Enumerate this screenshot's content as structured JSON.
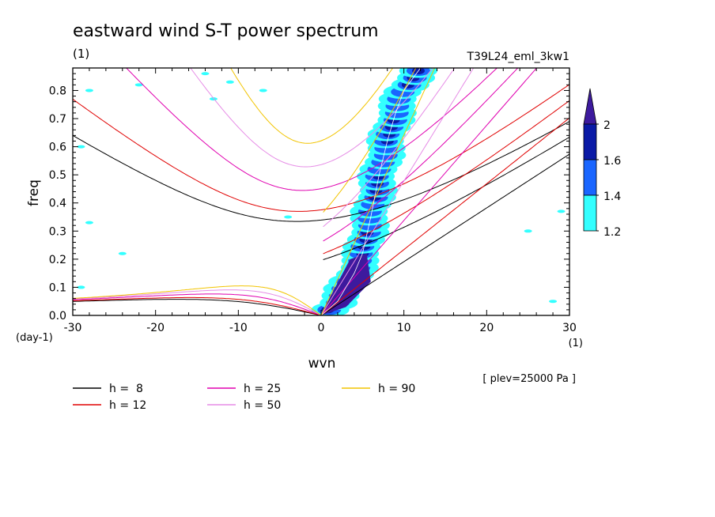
{
  "chart_data": {
    "type": "contour",
    "title": "eastward wind S-T power spectrum",
    "units_label": "(1)",
    "experiment": "T39L24_eml_3kw1",
    "xlabel": "wvn",
    "x_units": "(1)",
    "ylabel": "freq",
    "y_units": "(day-1)",
    "xlim": [
      -30,
      30
    ],
    "ylim": [
      0,
      0.88
    ],
    "x_ticks": [
      "-30",
      "-20",
      "-10",
      "0",
      "10",
      "20",
      "30"
    ],
    "y_ticks": [
      "0.0",
      "0.1",
      "0.2",
      "0.3",
      "0.4",
      "0.5",
      "0.6",
      "0.7",
      "0.8"
    ],
    "note": "[ plev=25000 Pa ]",
    "colorbar": {
      "levels": [
        "1.2",
        "1.4",
        "1.6",
        "2"
      ],
      "colors": [
        "#33ffff",
        "#1a66ff",
        "#0a1aa6",
        "#3d1a9e"
      ]
    },
    "dispersion_curves": [
      {
        "label": "h =  8",
        "h": 8,
        "color": "#000000"
      },
      {
        "label": "h = 12",
        "h": 12,
        "color": "#e00000"
      },
      {
        "label": "h = 25",
        "h": 25,
        "color": "#e000b0"
      },
      {
        "label": "h = 50",
        "h": 50,
        "color": "#e68ce6"
      },
      {
        "label": "h = 90",
        "h": 90,
        "color": "#f2c400"
      }
    ],
    "spectral_band": {
      "description": "high power band along Kelvin-wave dispersion, approx freq vs wvn",
      "ridge": [
        [
          0,
          0.0
        ],
        [
          2,
          0.05
        ],
        [
          4,
          0.15
        ],
        [
          5,
          0.22
        ],
        [
          6,
          0.35
        ],
        [
          7,
          0.5
        ],
        [
          8,
          0.62
        ],
        [
          9,
          0.72
        ],
        [
          10,
          0.8
        ],
        [
          12,
          0.88
        ]
      ]
    }
  }
}
